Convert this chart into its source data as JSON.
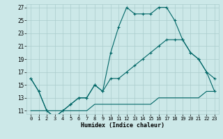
{
  "xlabel": "Humidex (Indice chaleur)",
  "bg_color": "#cce8e8",
  "grid_color": "#aacccc",
  "line_color": "#006666",
  "xlim": [
    -0.5,
    23.5
  ],
  "ylim": [
    10.5,
    27.5
  ],
  "xticks": [
    0,
    1,
    2,
    3,
    4,
    5,
    6,
    7,
    8,
    9,
    10,
    11,
    12,
    13,
    14,
    15,
    16,
    17,
    18,
    19,
    20,
    21,
    22,
    23
  ],
  "yticks": [
    11,
    13,
    15,
    17,
    19,
    21,
    23,
    25,
    27
  ],
  "line1_x": [
    0,
    1,
    2,
    3,
    4,
    5,
    6,
    7,
    8,
    9,
    10,
    11,
    12,
    13,
    14,
    15,
    16,
    17,
    18,
    19,
    20,
    21,
    22,
    23
  ],
  "line1_y": [
    16,
    14,
    11,
    10,
    11,
    12,
    13,
    13,
    15,
    14,
    20,
    24,
    27,
    26,
    26,
    26,
    27,
    27,
    25,
    22,
    20,
    19,
    17,
    16
  ],
  "line2_x": [
    0,
    1,
    2,
    3,
    4,
    5,
    6,
    7,
    8,
    9,
    10,
    11,
    12,
    13,
    14,
    15,
    16,
    17,
    18,
    19,
    20,
    21,
    22,
    23
  ],
  "line2_y": [
    16,
    14,
    11,
    10,
    11,
    12,
    13,
    13,
    15,
    14,
    16,
    16,
    17,
    18,
    19,
    20,
    21,
    22,
    22,
    22,
    20,
    19,
    17,
    14
  ],
  "line3_x": [
    0,
    1,
    2,
    3,
    4,
    5,
    6,
    7,
    8,
    9,
    10,
    11,
    12,
    13,
    14,
    15,
    16,
    17,
    18,
    19,
    20,
    21,
    22,
    23
  ],
  "line3_y": [
    11,
    11,
    11,
    11,
    11,
    11,
    11,
    11,
    12,
    12,
    12,
    12,
    12,
    12,
    12,
    12,
    13,
    13,
    13,
    13,
    13,
    13,
    14,
    14
  ]
}
